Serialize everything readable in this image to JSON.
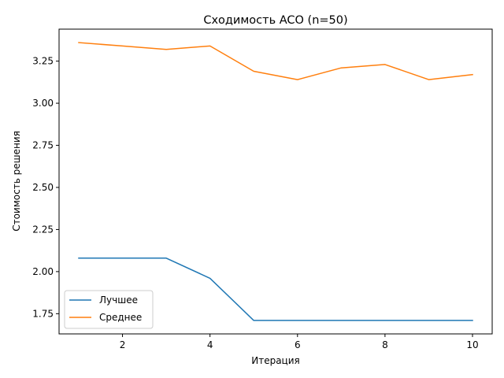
{
  "chart_data": {
    "type": "line",
    "title": "Сходимость ACO (n=50)",
    "xlabel": "Итерация",
    "ylabel": "Стоимость решения",
    "x": [
      1,
      2,
      3,
      4,
      5,
      6,
      7,
      8,
      9,
      10
    ],
    "xlim": [
      0.55,
      10.45
    ],
    "ylim": [
      1.63,
      3.44
    ],
    "xticks": [
      2,
      4,
      6,
      8,
      10
    ],
    "yticks": [
      1.75,
      2.0,
      2.25,
      2.5,
      2.75,
      3.0,
      3.25
    ],
    "xtick_labels": [
      "2",
      "4",
      "6",
      "8",
      "10"
    ],
    "ytick_labels": [
      "1.75",
      "2.00",
      "2.25",
      "2.50",
      "2.75",
      "3.00",
      "3.25"
    ],
    "grid": false,
    "legend_position": "lower-left",
    "series": [
      {
        "name": "Лучшее",
        "color": "#1f77b4",
        "values": [
          2.08,
          2.08,
          2.08,
          1.96,
          1.71,
          1.71,
          1.71,
          1.71,
          1.71,
          1.71
        ]
      },
      {
        "name": "Среднее",
        "color": "#ff7f0e",
        "values": [
          3.36,
          3.34,
          3.32,
          3.34,
          3.19,
          3.14,
          3.21,
          3.23,
          3.14,
          3.17
        ]
      }
    ]
  }
}
